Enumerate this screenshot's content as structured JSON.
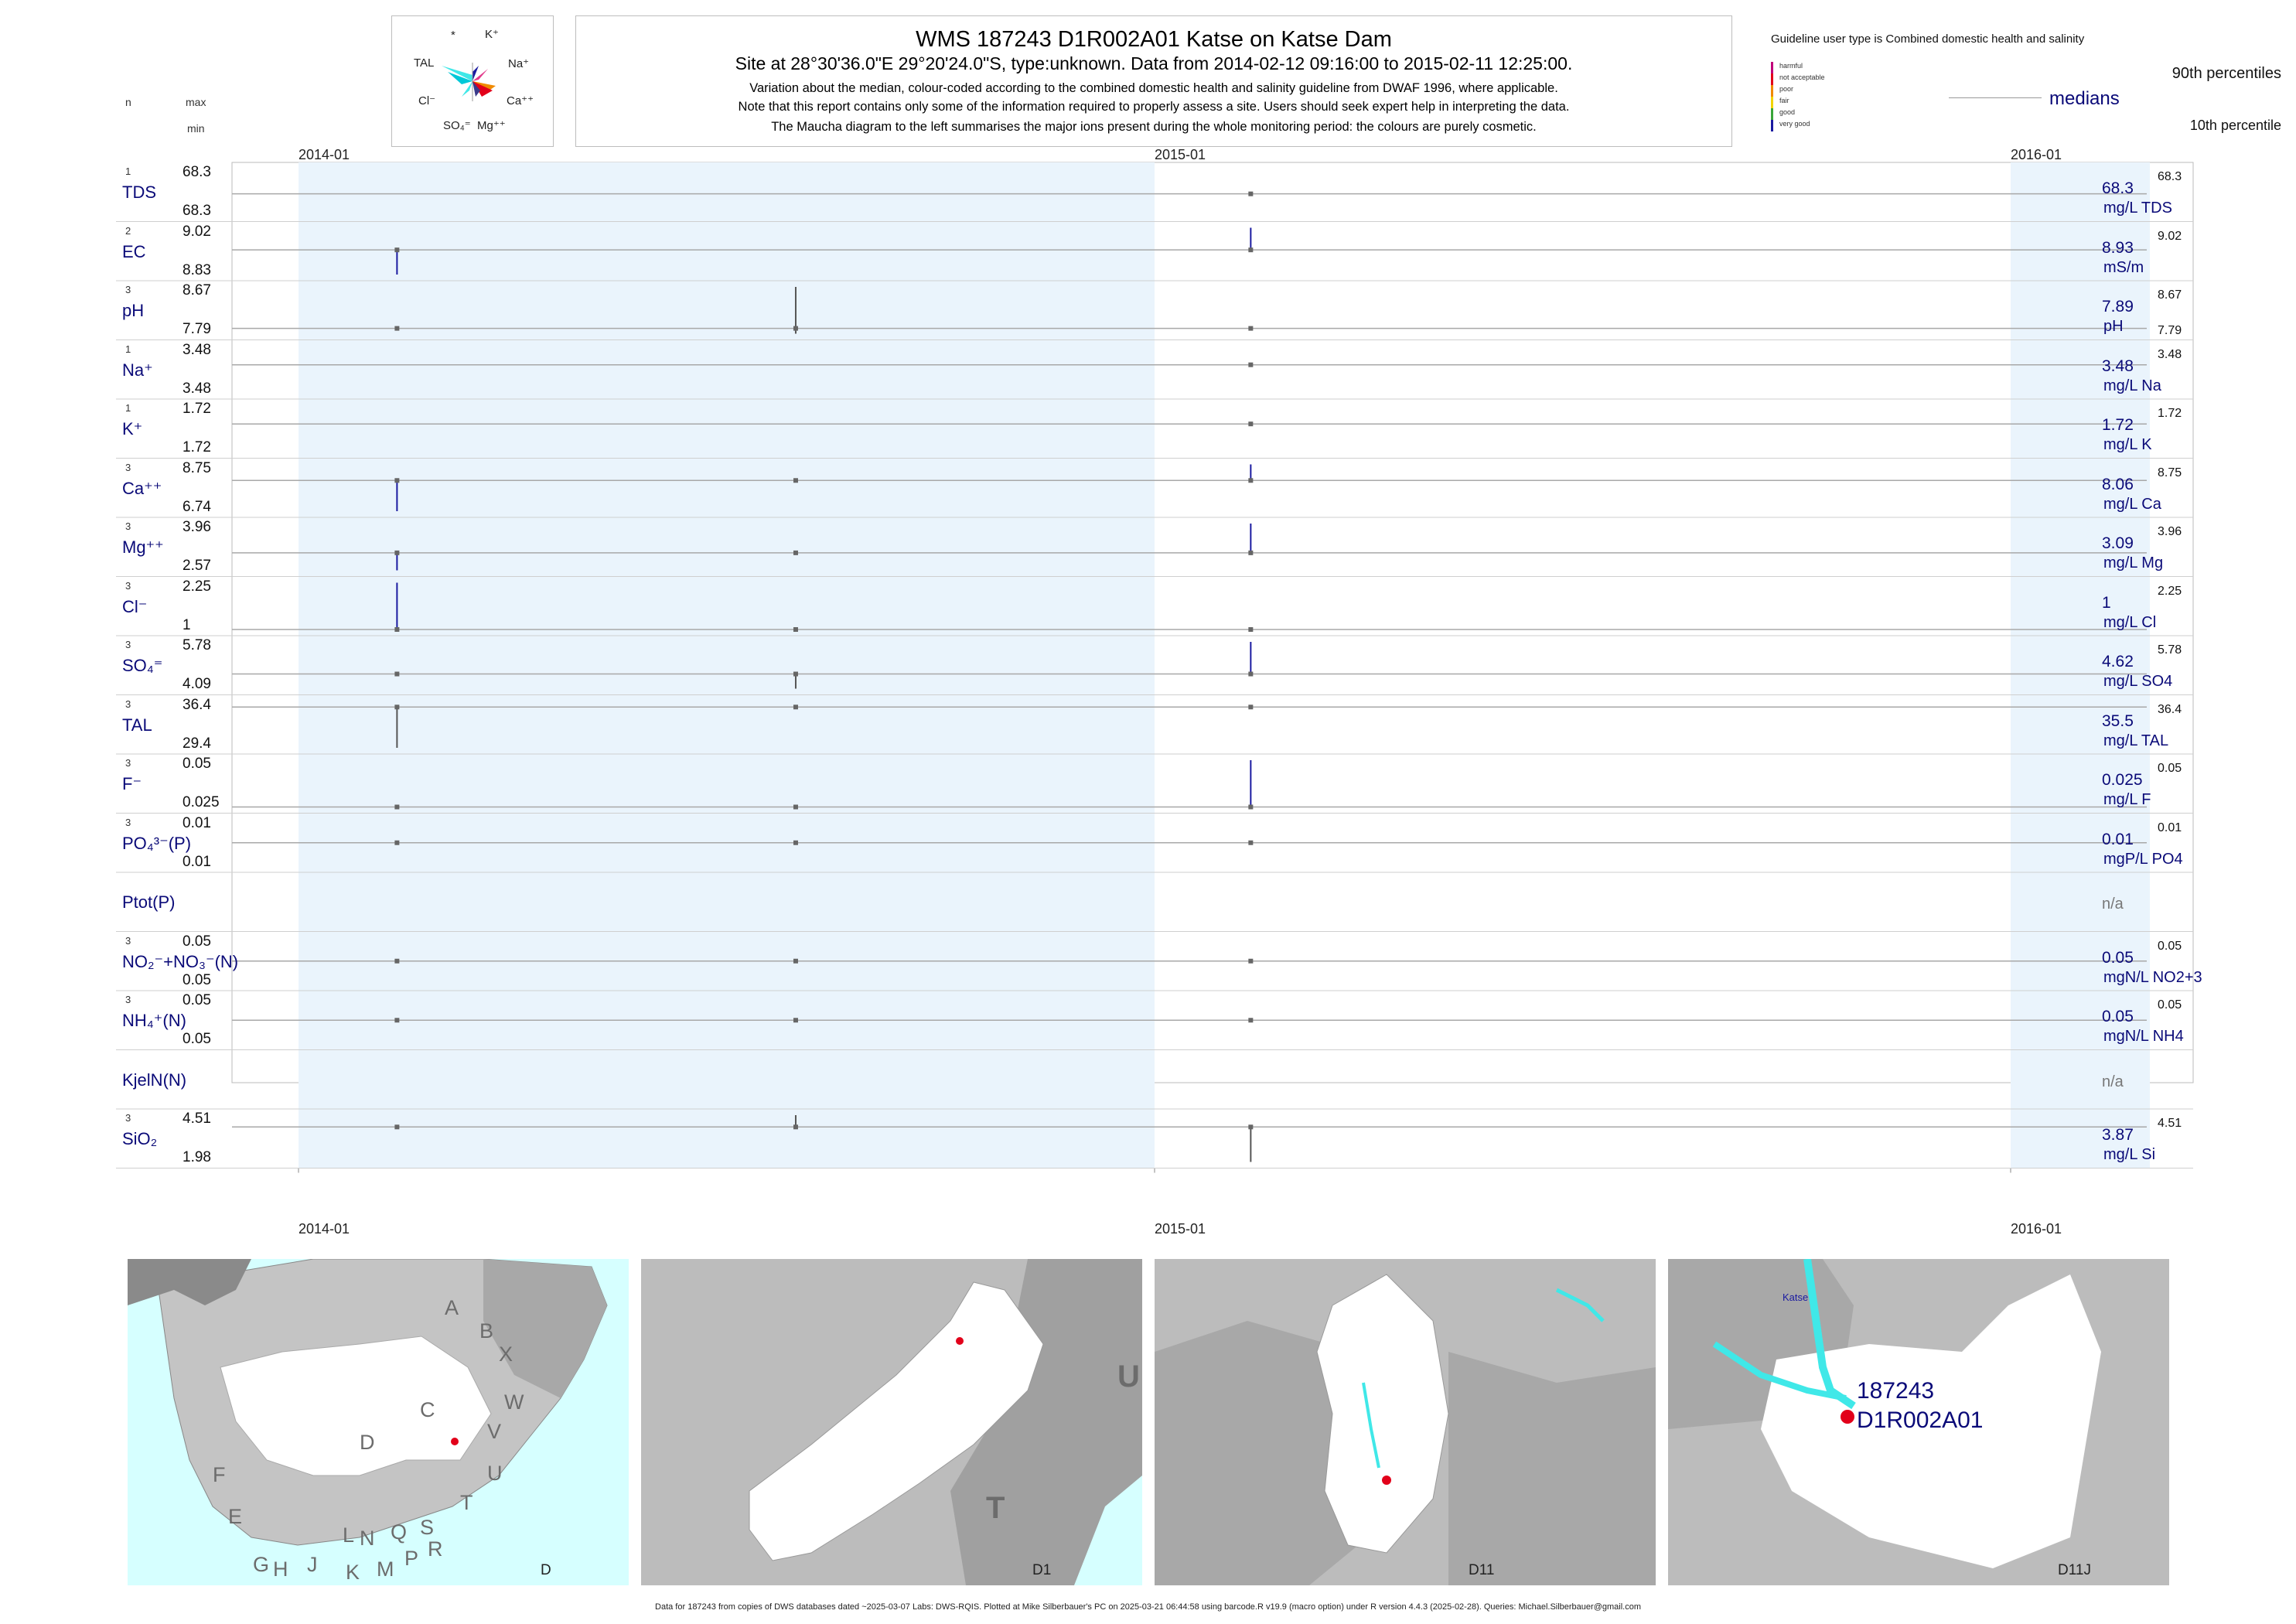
{
  "header": {
    "title": "WMS 187243 D1R002A01 Katse on Katse Dam",
    "subtitle": "Site at 28°30'36.0\"E 29°20'24.0\"S, type:unknown.  Data from 2014-02-12 09:16:00 to 2015-02-11 12:25:00.",
    "note1": "Variation about the median,  colour-coded according to the combined domestic health and salinity guideline from DWAF 1996, where applicable.",
    "note2": "Note that this report contains only some of the information required to properly assess a site. Users should seek expert help in interpreting the data.",
    "note3": "The Maucha diagram to the left summarises the major ions present during the whole monitoring period: the colours are purely cosmetic."
  },
  "col_headers": {
    "n": "n",
    "max": "max",
    "min": "min"
  },
  "maucha": {
    "labels": [
      "*",
      "K⁺",
      "TAL",
      "Na⁺",
      "Cl⁻",
      "Ca⁺⁺",
      "SO₄⁼",
      "Mg⁺⁺"
    ]
  },
  "guideline": {
    "title": "Guideline user type is Combined domestic health and salinity",
    "classes": [
      {
        "label": "harmful",
        "color": "#c0007a"
      },
      {
        "label": "not acceptable",
        "color": "#e2001a"
      },
      {
        "label": "poor",
        "color": "#f08a00"
      },
      {
        "label": "fair",
        "color": "#f2d400"
      },
      {
        "label": "good",
        "color": "#3aa63a"
      },
      {
        "label": "very good",
        "color": "#1a1aa0"
      }
    ],
    "p90": "90th percentiles",
    "medians": "medians",
    "p10": "10th percentile"
  },
  "chart_data": {
    "type": "line",
    "x_ticks": [
      "2014-01",
      "2015-01",
      "2016-01"
    ],
    "shaded_years": [
      "2014",
      "2016"
    ],
    "series": [
      {
        "param": "TDS",
        "n": "1",
        "max": "68.3",
        "min": "68.3",
        "median": "68.3",
        "rmax": "68.3",
        "rmin": "",
        "unit": "mg/L TDS",
        "ymin": 66,
        "ymax": 71,
        "line": 68.3,
        "marks": [
          {
            "date": "2015-02-11",
            "lo": 68.3,
            "hi": 68.3,
            "c": "#555"
          }
        ]
      },
      {
        "param": "EC",
        "n": "2",
        "max": "9.02",
        "min": "8.83",
        "median": "8.93",
        "rmax": "9.02",
        "rmin": "",
        "unit": "mS/m",
        "ymin": 8.83,
        "ymax": 9.02,
        "line": 8.93,
        "marks": [
          {
            "date": "2014-02-12",
            "lo": 8.83,
            "hi": 8.93,
            "c": "#1a1aa0"
          },
          {
            "date": "2015-02-11",
            "lo": 8.93,
            "hi": 9.02,
            "c": "#1a1aa0"
          }
        ]
      },
      {
        "param": "pH",
        "n": "3",
        "max": "8.67",
        "min": "7.79",
        "median": "7.89",
        "rmax": "8.67",
        "rmin": "7.79",
        "unit": "pH",
        "ymin": 7.79,
        "ymax": 8.67,
        "line": 7.89,
        "marks": [
          {
            "date": "2014-02-12",
            "lo": 7.79,
            "hi": 7.79,
            "c": "#555"
          },
          {
            "date": "2014-08-01",
            "lo": 7.79,
            "hi": 8.67,
            "c": "#555"
          },
          {
            "date": "2015-02-11",
            "lo": 7.79,
            "hi": 7.79,
            "c": "#555"
          }
        ]
      },
      {
        "param": "Na",
        "n": "1",
        "max": "3.48",
        "min": "3.48",
        "median": "3.48",
        "rmax": "3.48",
        "rmin": "",
        "unit": "mg/L Na",
        "ymin": 3.3,
        "ymax": 3.6,
        "line": 3.48,
        "marks": [
          {
            "date": "2015-02-11",
            "lo": 3.48,
            "hi": 3.48,
            "c": "#555"
          }
        ]
      },
      {
        "param": "K",
        "n": "1",
        "max": "1.72",
        "min": "1.72",
        "median": "1.72",
        "rmax": "1.72",
        "rmin": "",
        "unit": "mg/L K",
        "ymin": 1.6,
        "ymax": 1.8,
        "line": 1.72,
        "marks": [
          {
            "date": "2015-02-11",
            "lo": 1.72,
            "hi": 1.72,
            "c": "#555"
          }
        ]
      },
      {
        "param": "Ca",
        "n": "3",
        "max": "8.75",
        "min": "6.74",
        "median": "8.06",
        "rmax": "8.75",
        "rmin": "",
        "unit": "mg/L Ca",
        "ymin": 6.74,
        "ymax": 8.75,
        "line": 8.06,
        "marks": [
          {
            "date": "2014-02-12",
            "lo": 6.74,
            "hi": 8.06,
            "c": "#1a1aa0"
          },
          {
            "date": "2014-08-01",
            "lo": 8.06,
            "hi": 8.06,
            "c": "#555"
          },
          {
            "date": "2015-02-11",
            "lo": 8.06,
            "hi": 8.75,
            "c": "#1a1aa0"
          }
        ]
      },
      {
        "param": "Mg",
        "n": "3",
        "max": "3.96",
        "min": "2.57",
        "median": "3.09",
        "rmax": "3.96",
        "rmin": "",
        "unit": "mg/L Mg",
        "ymin": 2.57,
        "ymax": 3.96,
        "line": 3.09,
        "marks": [
          {
            "date": "2014-02-12",
            "lo": 2.57,
            "hi": 3.09,
            "c": "#1a1aa0"
          },
          {
            "date": "2014-08-01",
            "lo": 3.09,
            "hi": 3.09,
            "c": "#555"
          },
          {
            "date": "2015-02-11",
            "lo": 3.09,
            "hi": 3.96,
            "c": "#1a1aa0"
          }
        ]
      },
      {
        "param": "Cl",
        "n": "3",
        "max": "2.25",
        "min": "1",
        "median": "1",
        "rmax": "2.25",
        "rmin": "",
        "unit": "mg/L Cl",
        "ymin": 1,
        "ymax": 2.25,
        "line": 1,
        "marks": [
          {
            "date": "2014-02-12",
            "lo": 1,
            "hi": 2.25,
            "c": "#1a1aa0"
          },
          {
            "date": "2014-08-01",
            "lo": 1,
            "hi": 1,
            "c": "#555"
          },
          {
            "date": "2015-02-11",
            "lo": 1,
            "hi": 1,
            "c": "#555"
          }
        ]
      },
      {
        "param": "SO4",
        "n": "3",
        "max": "5.78",
        "min": "4.09",
        "median": "4.62",
        "rmax": "5.78",
        "rmin": "",
        "unit": "mg/L SO4",
        "ymin": 4.09,
        "ymax": 5.78,
        "line": 4.62,
        "marks": [
          {
            "date": "2014-02-12",
            "lo": 4.62,
            "hi": 4.62,
            "c": "#555"
          },
          {
            "date": "2014-08-01",
            "lo": 4.09,
            "hi": 4.62,
            "c": "#555"
          },
          {
            "date": "2015-02-11",
            "lo": 4.62,
            "hi": 5.78,
            "c": "#1a1aa0"
          }
        ]
      },
      {
        "param": "TAL",
        "n": "3",
        "max": "36.4",
        "min": "29.4",
        "median": "35.5",
        "rmax": "36.4",
        "rmin": "",
        "unit": "mg/L TAL",
        "ymin": 29.4,
        "ymax": 36.4,
        "line": 35.5,
        "marks": [
          {
            "date": "2014-02-12",
            "lo": 29.4,
            "hi": 35.5,
            "c": "#555"
          },
          {
            "date": "2014-08-01",
            "lo": 35.5,
            "hi": 35.5,
            "c": "#555"
          },
          {
            "date": "2015-02-11",
            "lo": 35.5,
            "hi": 35.5,
            "c": "#555"
          }
        ]
      },
      {
        "param": "F",
        "n": "3",
        "max": "0.05",
        "min": "0.025",
        "median": "0.025",
        "rmax": "0.05",
        "rmin": "",
        "unit": "mg/L F",
        "ymin": 0.025,
        "ymax": 0.05,
        "line": 0.025,
        "marks": [
          {
            "date": "2014-02-12",
            "lo": 0.025,
            "hi": 0.025,
            "c": "#555"
          },
          {
            "date": "2014-08-01",
            "lo": 0.025,
            "hi": 0.025,
            "c": "#555"
          },
          {
            "date": "2015-02-11",
            "lo": 0.025,
            "hi": 0.05,
            "c": "#1a1aa0"
          }
        ]
      },
      {
        "param": "PO4",
        "n": "3",
        "max": "0.01",
        "min": "0.01",
        "median": "0.01",
        "rmax": "0.01",
        "rmin": "",
        "unit": "mgP/L PO4",
        "ymin": 0.008,
        "ymax": 0.012,
        "line": 0.01,
        "marks": [
          {
            "date": "2014-02-12",
            "lo": 0.01,
            "hi": 0.01,
            "c": "#555"
          },
          {
            "date": "2014-08-01",
            "lo": 0.01,
            "hi": 0.01,
            "c": "#555"
          },
          {
            "date": "2015-02-11",
            "lo": 0.01,
            "hi": 0.01,
            "c": "#555"
          }
        ]
      },
      {
        "param": "Ptot",
        "n": "",
        "max": "",
        "min": "",
        "median": "",
        "rmax": "",
        "rmin": "",
        "unit": "",
        "na": "n/a",
        "marks": []
      },
      {
        "param": "NO2+NO3",
        "n": "3",
        "max": "0.05",
        "min": "0.05",
        "median": "0.05",
        "rmax": "0.05",
        "rmin": "",
        "unit": "mgN/L NO2+3",
        "ymin": 0.04,
        "ymax": 0.06,
        "line": 0.05,
        "marks": [
          {
            "date": "2014-02-12",
            "lo": 0.05,
            "hi": 0.05,
            "c": "#555"
          },
          {
            "date": "2014-08-01",
            "lo": 0.05,
            "hi": 0.05,
            "c": "#555"
          },
          {
            "date": "2015-02-11",
            "lo": 0.05,
            "hi": 0.05,
            "c": "#555"
          }
        ]
      },
      {
        "param": "NH4",
        "n": "3",
        "max": "0.05",
        "min": "0.05",
        "median": "0.05",
        "rmax": "0.05",
        "rmin": "",
        "unit": "mgN/L NH4",
        "ymin": 0.04,
        "ymax": 0.06,
        "line": 0.05,
        "marks": [
          {
            "date": "2014-02-12",
            "lo": 0.05,
            "hi": 0.05,
            "c": "#555"
          },
          {
            "date": "2014-08-01",
            "lo": 0.05,
            "hi": 0.05,
            "c": "#555"
          },
          {
            "date": "2015-02-11",
            "lo": 0.05,
            "hi": 0.05,
            "c": "#555"
          }
        ]
      },
      {
        "param": "KjelN",
        "n": "",
        "max": "",
        "min": "",
        "median": "",
        "rmax": "",
        "rmin": "",
        "unit": "",
        "na": "n/a",
        "marks": []
      },
      {
        "param": "SiO2",
        "n": "3",
        "max": "4.51",
        "min": "1.98",
        "median": "3.87",
        "rmax": "4.51",
        "rmin": "",
        "unit": "mg/L Si",
        "ymin": 1.98,
        "ymax": 4.51,
        "line": 3.87,
        "marks": [
          {
            "date": "2014-02-12",
            "lo": 3.87,
            "hi": 3.87,
            "c": "#555"
          },
          {
            "date": "2014-08-01",
            "lo": 3.87,
            "hi": 4.51,
            "c": "#555"
          },
          {
            "date": "2015-02-11",
            "lo": 1.98,
            "hi": 3.87,
            "c": "#555"
          }
        ]
      }
    ]
  },
  "maps": {
    "panel1": {
      "labels": [
        "A",
        "B",
        "X",
        "C",
        "W",
        "D",
        "V",
        "U",
        "T",
        "F",
        "E",
        "L",
        "N",
        "Q",
        "S",
        "R",
        "G",
        "H",
        "J",
        "K",
        "M",
        "P"
      ],
      "caption": "D"
    },
    "panel2": {
      "letters": [
        "U",
        "T"
      ],
      "caption": "D1"
    },
    "panel3": {
      "caption": "D11"
    },
    "panel4": {
      "dam": "Katse",
      "site_code": "187243",
      "site_name": "D1R002A01",
      "caption": "D11J"
    }
  },
  "footer": "Data for 187243 from copies of DWS databases dated ~2025-03-07 Labs: DWS-RQIS. Plotted at Mike Silberbauer's PC on 2025-03-21 06:44:58 using barcode.R v19.9 (macro option) under R version 4.4.3 (2025-02-28). Queries: Michael.Silberbauer@gmail.com"
}
